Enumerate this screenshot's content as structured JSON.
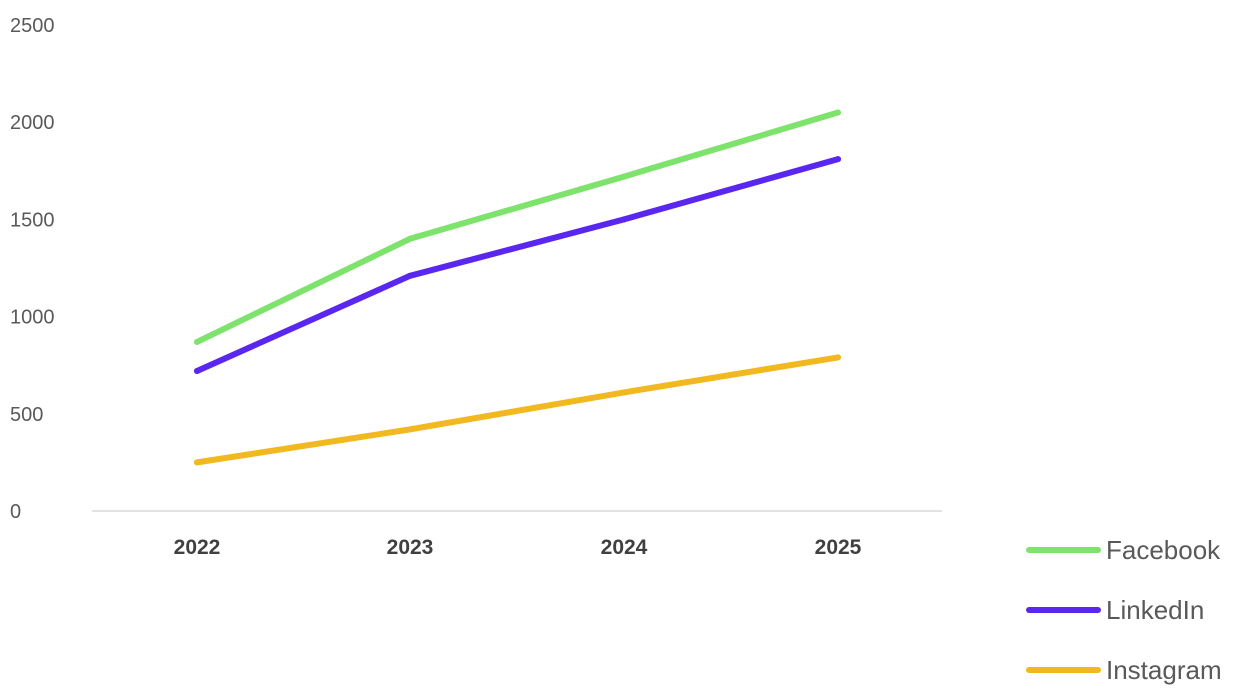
{
  "chart_data": {
    "type": "line",
    "categories": [
      "2022",
      "2023",
      "2024",
      "2025"
    ],
    "series": [
      {
        "name": "Facebook",
        "color": "#7ee36c",
        "values": [
          870,
          1400,
          1720,
          2050
        ]
      },
      {
        "name": "LinkedIn",
        "color": "#5a27f0",
        "values": [
          720,
          1210,
          1500,
          1810
        ]
      },
      {
        "name": "Instagram",
        "color": "#f1b81f",
        "values": [
          250,
          420,
          610,
          790
        ]
      }
    ],
    "y_ticks": [
      "0",
      "500",
      "1000",
      "1500",
      "2000",
      "2500"
    ],
    "ylim": [
      0,
      2500
    ],
    "title": "",
    "xlabel": "",
    "ylabel": "",
    "grid": false,
    "legend_position": "bottom-right"
  }
}
